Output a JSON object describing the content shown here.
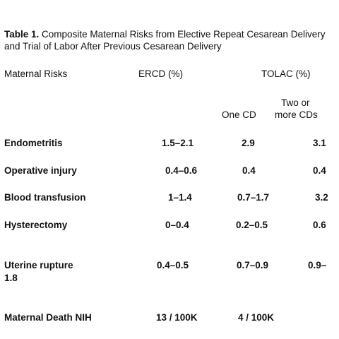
{
  "table": {
    "caption_label": "Table 1.",
    "caption_text": "Composite Maternal Risks from Elective Repeat Cesarean Delivery and Trial of Labor After Previous Cesarean Delivery",
    "headers": {
      "risk": "Maternal Risks",
      "ercd": "ERCD (%)",
      "tolac": "TOLAC (%)",
      "one_cd": "One CD",
      "two_line1": "Two or",
      "two_line2": "more CDs"
    },
    "rows": [
      {
        "label": "Endometritis",
        "ercd": "1.5–2.1",
        "one": "2.9",
        "two": "3.1"
      },
      {
        "label": "Operative injury",
        "ercd": "0.4–0.6",
        "one": "0.4",
        "two": "0.4"
      },
      {
        "label": "Blood transfusion",
        "ercd": "1–1.4",
        "one": "0.7–1.7",
        "two": "3.2"
      },
      {
        "label": "Hysterectomy",
        "ercd": "0–0.4",
        "one": "0.2–0.5",
        "two": "0.6"
      },
      {
        "label": "Uterine rupture",
        "label2": "1.8",
        "ercd": "0.4–0.5",
        "one": "0.7–0.9",
        "two": "0.9–"
      },
      {
        "label": "Maternal Death NIH",
        "ercd": "13 / 100K",
        "one": "4 / 100K",
        "two": ""
      }
    ]
  }
}
